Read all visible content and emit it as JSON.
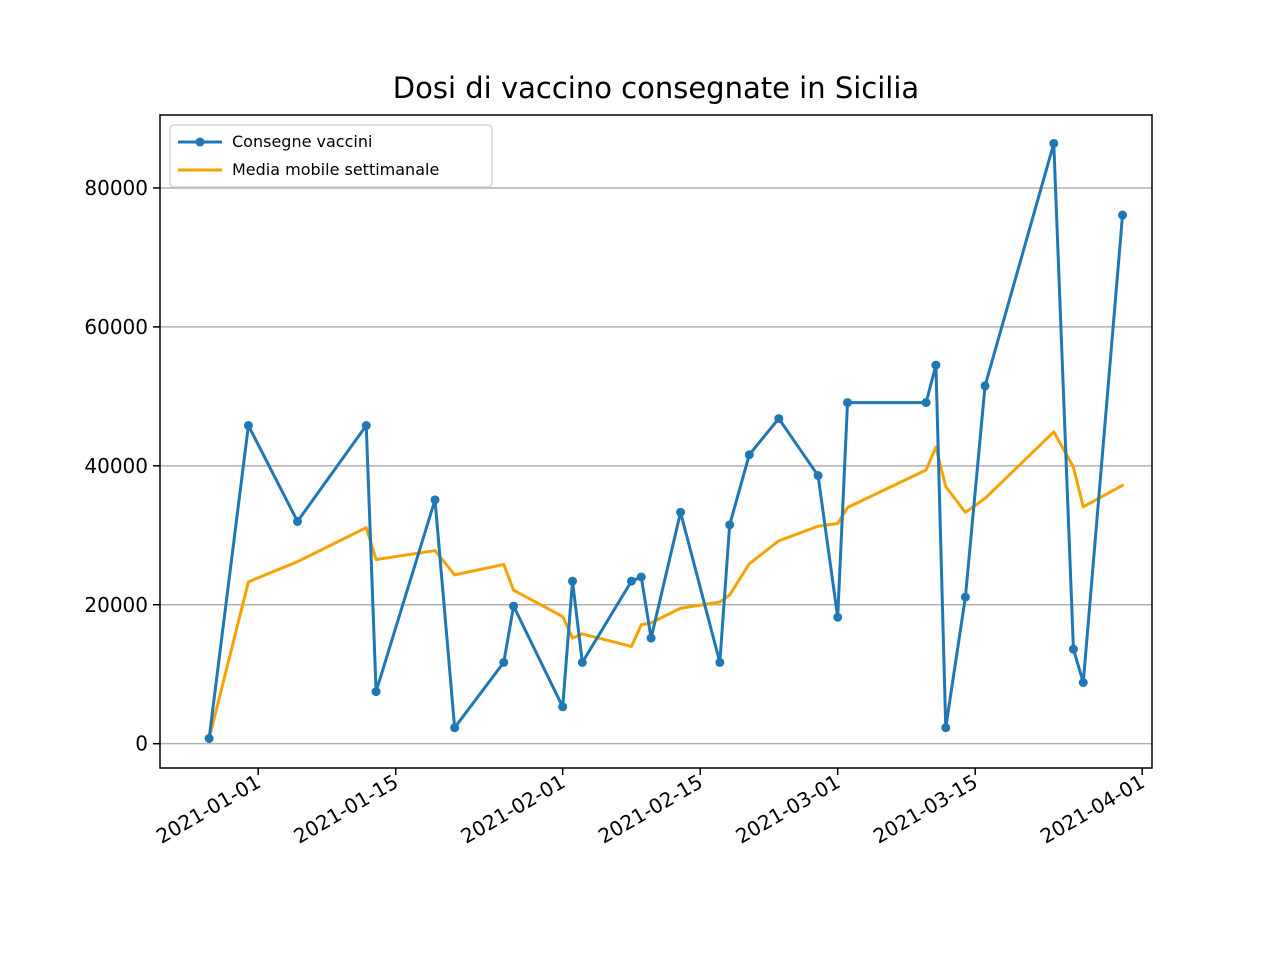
{
  "chart_data": {
    "type": "line",
    "title": "Dosi di vaccino consegnate in Sicilia",
    "xlabel": "",
    "ylabel": "",
    "x_axis_type": "date",
    "xlim": [
      "2020-12-22",
      "2021-04-02"
    ],
    "ylim": [
      -3500,
      90500
    ],
    "x_ticks": [
      "2021-01-01",
      "2021-01-15",
      "2021-02-01",
      "2021-02-15",
      "2021-03-01",
      "2021-03-15",
      "2021-04-01"
    ],
    "y_ticks": [
      0,
      20000,
      40000,
      60000,
      80000
    ],
    "y_grid": true,
    "x_grid": false,
    "legend_position": "top-left",
    "series": [
      {
        "name": "Consegne vaccini",
        "color": "#1f77b4",
        "marker": "circle",
        "points": [
          {
            "x": "2020-12-27",
            "y": 750
          },
          {
            "x": "2020-12-31",
            "y": 45800
          },
          {
            "x": "2021-01-05",
            "y": 32000
          },
          {
            "x": "2021-01-12",
            "y": 45800
          },
          {
            "x": "2021-01-13",
            "y": 7500
          },
          {
            "x": "2021-01-19",
            "y": 35100
          },
          {
            "x": "2021-01-21",
            "y": 2300
          },
          {
            "x": "2021-01-26",
            "y": 11700
          },
          {
            "x": "2021-01-27",
            "y": 19800
          },
          {
            "x": "2021-02-01",
            "y": 5300
          },
          {
            "x": "2021-02-02",
            "y": 23400
          },
          {
            "x": "2021-02-03",
            "y": 11700
          },
          {
            "x": "2021-02-08",
            "y": 23400
          },
          {
            "x": "2021-02-09",
            "y": 24000
          },
          {
            "x": "2021-02-10",
            "y": 15200
          },
          {
            "x": "2021-02-13",
            "y": 33300
          },
          {
            "x": "2021-02-17",
            "y": 11700
          },
          {
            "x": "2021-02-18",
            "y": 31500
          },
          {
            "x": "2021-02-20",
            "y": 41600
          },
          {
            "x": "2021-02-23",
            "y": 46800
          },
          {
            "x": "2021-02-27",
            "y": 38600
          },
          {
            "x": "2021-03-01",
            "y": 18200
          },
          {
            "x": "2021-03-02",
            "y": 49100
          },
          {
            "x": "2021-03-10",
            "y": 49100
          },
          {
            "x": "2021-03-11",
            "y": 54500
          },
          {
            "x": "2021-03-12",
            "y": 2300
          },
          {
            "x": "2021-03-14",
            "y": 21100
          },
          {
            "x": "2021-03-16",
            "y": 51500
          },
          {
            "x": "2021-03-23",
            "y": 86400
          },
          {
            "x": "2021-03-25",
            "y": 13600
          },
          {
            "x": "2021-03-26",
            "y": 8800
          },
          {
            "x": "2021-03-30",
            "y": 76100
          }
        ]
      },
      {
        "name": "Media mobile settimanale",
        "color": "#f5a300",
        "marker": "none",
        "points": [
          {
            "x": "2020-12-27",
            "y": 750
          },
          {
            "x": "2020-12-31",
            "y": 23300
          },
          {
            "x": "2021-01-05",
            "y": 26200
          },
          {
            "x": "2021-01-12",
            "y": 31100
          },
          {
            "x": "2021-01-13",
            "y": 26500
          },
          {
            "x": "2021-01-19",
            "y": 27800
          },
          {
            "x": "2021-01-21",
            "y": 24300
          },
          {
            "x": "2021-01-26",
            "y": 25800
          },
          {
            "x": "2021-01-27",
            "y": 22100
          },
          {
            "x": "2021-02-01",
            "y": 18300
          },
          {
            "x": "2021-02-02",
            "y": 15200
          },
          {
            "x": "2021-02-03",
            "y": 15800
          },
          {
            "x": "2021-02-08",
            "y": 14000
          },
          {
            "x": "2021-02-09",
            "y": 17100
          },
          {
            "x": "2021-02-10",
            "y": 17400
          },
          {
            "x": "2021-02-13",
            "y": 19500
          },
          {
            "x": "2021-02-17",
            "y": 20400
          },
          {
            "x": "2021-02-18",
            "y": 21400
          },
          {
            "x": "2021-02-20",
            "y": 25900
          },
          {
            "x": "2021-02-23",
            "y": 29200
          },
          {
            "x": "2021-02-27",
            "y": 31300
          },
          {
            "x": "2021-03-01",
            "y": 31700
          },
          {
            "x": "2021-03-02",
            "y": 34000
          },
          {
            "x": "2021-03-10",
            "y": 39400
          },
          {
            "x": "2021-03-11",
            "y": 42700
          },
          {
            "x": "2021-03-12",
            "y": 37000
          },
          {
            "x": "2021-03-14",
            "y": 33300
          },
          {
            "x": "2021-03-16",
            "y": 35300
          },
          {
            "x": "2021-03-23",
            "y": 44900
          },
          {
            "x": "2021-03-25",
            "y": 39800
          },
          {
            "x": "2021-03-26",
            "y": 34100
          },
          {
            "x": "2021-03-30",
            "y": 37200
          }
        ]
      }
    ]
  }
}
